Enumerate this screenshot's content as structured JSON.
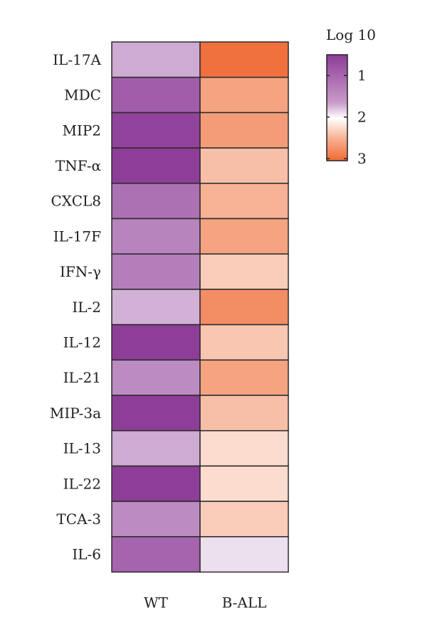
{
  "chart_data": {
    "type": "heatmap",
    "rows": [
      "IL-17A",
      "MDC",
      "MIP2",
      "TNF-α",
      "CXCL8",
      "IL-17F",
      "IFN-γ",
      "IL-2",
      "IL-12",
      "IL-21",
      "MIP-3a",
      "IL-13",
      "IL-22",
      "TCA-3",
      "IL-6"
    ],
    "columns": [
      "WT",
      "B-ALL"
    ],
    "values": [
      [
        1.35,
        3.0
      ],
      [
        0.75,
        2.65
      ],
      [
        0.55,
        2.7
      ],
      [
        0.5,
        2.45
      ],
      [
        0.9,
        2.55
      ],
      [
        1.05,
        2.65
      ],
      [
        1.0,
        2.35
      ],
      [
        1.4,
        2.8
      ],
      [
        0.5,
        2.4
      ],
      [
        1.1,
        2.65
      ],
      [
        0.5,
        2.45
      ],
      [
        1.35,
        2.25
      ],
      [
        0.4,
        2.25
      ],
      [
        1.1,
        2.35
      ],
      [
        0.8,
        1.75
      ]
    ],
    "legend": {
      "title": "Log 10",
      "ticks": [
        1,
        2,
        3
      ],
      "range": [
        0.5,
        3.05
      ],
      "placement": "top-right",
      "colors": {
        "low": "#8e3d98",
        "mid": "#ffffff",
        "high": "#ef6a33"
      }
    }
  }
}
